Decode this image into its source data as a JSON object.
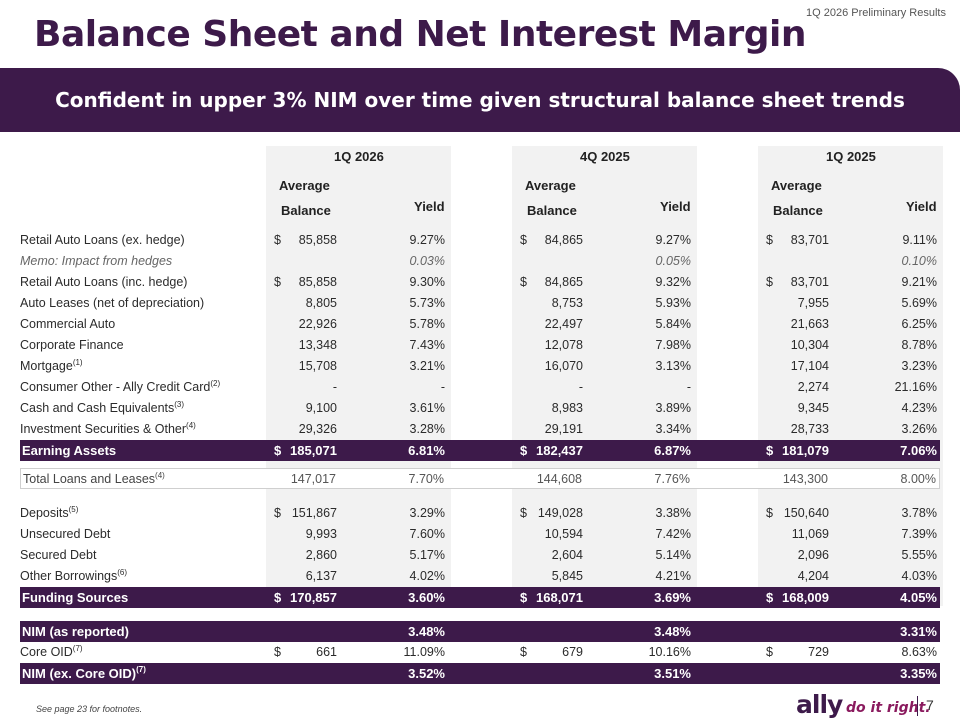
{
  "header": {
    "tag": "1Q 2026 Preliminary Results",
    "title": "Balance Sheet and Net Interest Margin",
    "banner": "Confident in upper 3% NIM over time given structural balance sheet trends"
  },
  "columns": {
    "periods": [
      "1Q 2026",
      "4Q 2025",
      "1Q 2025"
    ],
    "avg_line1": "Average",
    "avg_line2": "Balance",
    "yield": "Yield"
  },
  "rows": [
    {
      "label": "Retail Auto Loans (ex. hedge)",
      "sup": "",
      "style": "normal",
      "cells": [
        [
          "$",
          "85,858",
          "9.27%"
        ],
        [
          "$",
          "84,865",
          "9.27%"
        ],
        [
          "$",
          "83,701",
          "9.11%"
        ]
      ]
    },
    {
      "label": "Memo: Impact from hedges",
      "sup": "",
      "style": "memo",
      "cells": [
        [
          "",
          "",
          "0.03%"
        ],
        [
          "",
          "",
          "0.05%"
        ],
        [
          "",
          "",
          "0.10%"
        ]
      ]
    },
    {
      "label": "Retail Auto Loans (inc. hedge)",
      "sup": "",
      "style": "normal",
      "cells": [
        [
          "$",
          "85,858",
          "9.30%"
        ],
        [
          "$",
          "84,865",
          "9.32%"
        ],
        [
          "$",
          "83,701",
          "9.21%"
        ]
      ]
    },
    {
      "label": "Auto Leases (net of depreciation)",
      "sup": "",
      "style": "normal",
      "cells": [
        [
          "",
          "8,805",
          "5.73%"
        ],
        [
          "",
          "8,753",
          "5.93%"
        ],
        [
          "",
          "7,955",
          "5.69%"
        ]
      ]
    },
    {
      "label": "Commercial Auto",
      "sup": "",
      "style": "normal",
      "cells": [
        [
          "",
          "22,926",
          "5.78%"
        ],
        [
          "",
          "22,497",
          "5.84%"
        ],
        [
          "",
          "21,663",
          "6.25%"
        ]
      ]
    },
    {
      "label": "Corporate Finance",
      "sup": "",
      "style": "normal",
      "cells": [
        [
          "",
          "13,348",
          "7.43%"
        ],
        [
          "",
          "12,078",
          "7.98%"
        ],
        [
          "",
          "10,304",
          "8.78%"
        ]
      ]
    },
    {
      "label": "Mortgage",
      "sup": "(1)",
      "style": "normal",
      "cells": [
        [
          "",
          "15,708",
          "3.21%"
        ],
        [
          "",
          "16,070",
          "3.13%"
        ],
        [
          "",
          "17,104",
          "3.23%"
        ]
      ]
    },
    {
      "label": "Consumer Other - Ally Credit Card",
      "sup": "(2)",
      "style": "normal",
      "cells": [
        [
          "",
          "-",
          "-"
        ],
        [
          "",
          "-",
          "-"
        ],
        [
          "",
          "2,274",
          "21.16%"
        ]
      ]
    },
    {
      "label": "Cash and Cash Equivalents",
      "sup": "(3)",
      "style": "normal",
      "cells": [
        [
          "",
          "9,100",
          "3.61%"
        ],
        [
          "",
          "8,983",
          "3.89%"
        ],
        [
          "",
          "9,345",
          "4.23%"
        ]
      ]
    },
    {
      "label": "Investment Securities & Other",
      "sup": "(4)",
      "style": "normal",
      "cells": [
        [
          "",
          "29,326",
          "3.28%"
        ],
        [
          "",
          "29,191",
          "3.34%"
        ],
        [
          "",
          "28,733",
          "3.26%"
        ]
      ]
    },
    {
      "label": "Earning Assets",
      "sup": "",
      "style": "band",
      "cells": [
        [
          "$",
          "185,071",
          "6.81%"
        ],
        [
          "$",
          "182,437",
          "6.87%"
        ],
        [
          "$",
          "181,079",
          "7.06%"
        ]
      ]
    },
    {
      "label": "Total Loans and Leases",
      "sup": "(4)",
      "style": "boxed",
      "cells": [
        [
          "",
          "147,017",
          "7.70%"
        ],
        [
          "",
          "144,608",
          "7.76%"
        ],
        [
          "",
          "143,300",
          "8.00%"
        ]
      ]
    },
    {
      "label": "Deposits",
      "sup": "(5)",
      "style": "normal",
      "cells": [
        [
          "$",
          "151,867",
          "3.29%"
        ],
        [
          "$",
          "149,028",
          "3.38%"
        ],
        [
          "$",
          "150,640",
          "3.78%"
        ]
      ]
    },
    {
      "label": "Unsecured Debt",
      "sup": "",
      "style": "normal",
      "cells": [
        [
          "",
          "9,993",
          "7.60%"
        ],
        [
          "",
          "10,594",
          "7.42%"
        ],
        [
          "",
          "11,069",
          "7.39%"
        ]
      ]
    },
    {
      "label": "Secured Debt",
      "sup": "",
      "style": "normal",
      "cells": [
        [
          "",
          "2,860",
          "5.17%"
        ],
        [
          "",
          "2,604",
          "5.14%"
        ],
        [
          "",
          "2,096",
          "5.55%"
        ]
      ]
    },
    {
      "label": "Other Borrowings",
      "sup": "(6)",
      "style": "normal",
      "cells": [
        [
          "",
          "6,137",
          "4.02%"
        ],
        [
          "",
          "5,845",
          "4.21%"
        ],
        [
          "",
          "4,204",
          "4.03%"
        ]
      ]
    },
    {
      "label": "Funding Sources",
      "sup": "",
      "style": "band",
      "cells": [
        [
          "$",
          "170,857",
          "3.60%"
        ],
        [
          "$",
          "168,071",
          "3.69%"
        ],
        [
          "$",
          "168,009",
          "4.05%"
        ]
      ]
    },
    {
      "label": "NIM (as reported)",
      "sup": "",
      "style": "band",
      "cells": [
        [
          "",
          "",
          "3.48%"
        ],
        [
          "",
          "",
          "3.48%"
        ],
        [
          "",
          "",
          "3.31%"
        ]
      ]
    },
    {
      "label": "Core OID",
      "sup": "(7)",
      "style": "normal",
      "cells": [
        [
          "$",
          "661",
          "11.09%"
        ],
        [
          "$",
          "679",
          "10.16%"
        ],
        [
          "$",
          "729",
          "8.63%"
        ]
      ]
    },
    {
      "label": "NIM (ex. Core OID)",
      "sup": "(7)",
      "style": "band",
      "cells": [
        [
          "",
          "",
          "3.52%"
        ],
        [
          "",
          "",
          "3.51%"
        ],
        [
          "",
          "",
          "3.35%"
        ]
      ]
    }
  ],
  "footer": {
    "footnote": "See page 23 for footnotes.",
    "brand": "ally",
    "tagline": "do it right.",
    "page": "7"
  },
  "colors": {
    "brand_purple": "#3d1a4a",
    "tagline_plum": "#8a1a5e",
    "shade": "#f2f2f2"
  }
}
